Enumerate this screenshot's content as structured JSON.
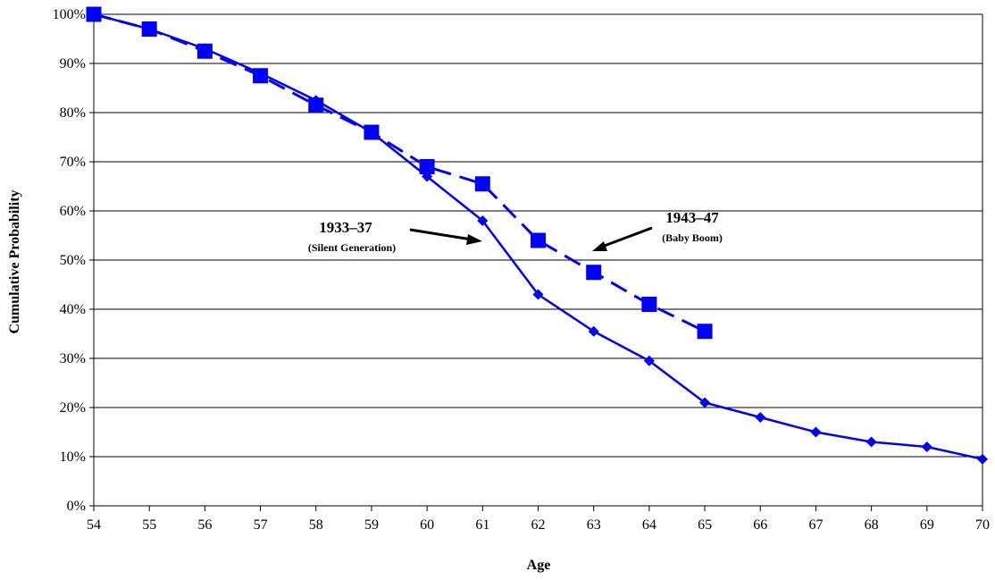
{
  "chart_data": {
    "type": "line",
    "xlabel": "Age",
    "ylabel": "Cumulative Probability",
    "xlim": [
      54,
      70
    ],
    "ylim": [
      0,
      100
    ],
    "x_ticks": [
      "54",
      "55",
      "56",
      "57",
      "58",
      "59",
      "60",
      "61",
      "62",
      "63",
      "64",
      "65",
      "66",
      "67",
      "68",
      "69",
      "70"
    ],
    "y_ticks": [
      "0%",
      "10%",
      "20%",
      "30%",
      "40%",
      "50%",
      "60%",
      "70%",
      "80%",
      "90%",
      "100%"
    ],
    "grid": "horizontal",
    "series": [
      {
        "key": "silent",
        "label_title": "1933–37",
        "label_sub": "(Silent Generation)",
        "marker": "diamond",
        "line": "solid",
        "color": "#0000ff",
        "x": [
          54,
          55,
          56,
          57,
          58,
          59,
          60,
          61,
          62,
          63,
          64,
          65,
          66,
          67,
          68,
          69,
          70
        ],
        "values": [
          100,
          97,
          93,
          88,
          82.5,
          76,
          67,
          58,
          43,
          35.5,
          29.5,
          21,
          18,
          15,
          13,
          12,
          9.5
        ]
      },
      {
        "key": "boom",
        "label_title": "1943–47",
        "label_sub": "(Baby Boom)",
        "marker": "square",
        "line": "dashed",
        "color": "#0000ff",
        "x": [
          54,
          55,
          56,
          57,
          58,
          59,
          60,
          61,
          62,
          63,
          64,
          65
        ],
        "values": [
          100,
          97,
          92.5,
          87.5,
          81.5,
          76,
          69,
          65.5,
          54,
          47.5,
          41,
          35.5
        ]
      }
    ]
  }
}
